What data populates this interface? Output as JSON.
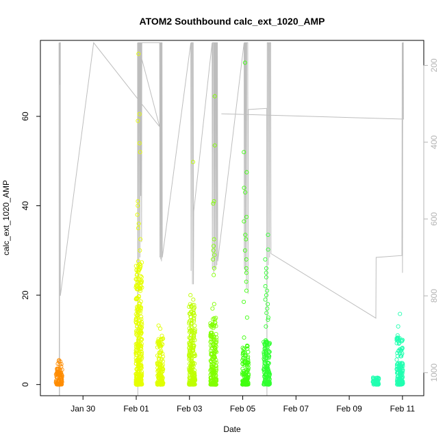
{
  "chart_data": {
    "type": "scatter",
    "title": "ATOM2 Southbound calc_ext_1020_AMP",
    "xlabel": "Date",
    "ylabel": "calc_ext_1020_AMP",
    "x_ticks": [
      "Jan 30",
      "Feb 01",
      "Feb 03",
      "Feb 05",
      "Feb 07",
      "Feb 09",
      "Feb 11"
    ],
    "x_tick_days": [
      30,
      32,
      34,
      36,
      38,
      40,
      42
    ],
    "xlim_days": [
      28.4,
      42.8
    ],
    "ylim": [
      -2.5,
      77
    ],
    "y_ticks": [
      0,
      20,
      40,
      60
    ],
    "y2_ticks": [
      200,
      400,
      600,
      800,
      1000
    ],
    "y2lim": [
      1060,
      135
    ],
    "grid": false,
    "clusters": [
      {
        "day": 29.1,
        "color": "#ff8c00",
        "max": 5.5,
        "high": []
      },
      {
        "day": 32.1,
        "color": "#e6ff00",
        "max": 28,
        "high": [
          74,
          60.5,
          59,
          54,
          52,
          41,
          40,
          38,
          36,
          35,
          32.5,
          30
        ]
      },
      {
        "day": 32.9,
        "color": "#e0ff00",
        "max": 11,
        "high": [
          13.2,
          12.5
        ]
      },
      {
        "day": 34.1,
        "color": "#bfff00",
        "max": 18,
        "high": [
          49.8,
          20,
          19
        ]
      },
      {
        "day": 34.9,
        "color": "#80ff00",
        "max": 15,
        "high": [
          64.5,
          53.5,
          41,
          40.5,
          32.5,
          31,
          30,
          29,
          28,
          26,
          24.5,
          18,
          17
        ]
      },
      {
        "day": 36.1,
        "color": "#40ff10",
        "max": 9,
        "high": [
          72,
          52,
          47.5,
          44,
          43,
          37.5,
          36.5,
          33.5,
          32.5,
          30,
          28,
          26,
          25,
          23,
          21,
          18.5,
          15,
          10.5
        ]
      },
      {
        "day": 36.9,
        "color": "#30ff30",
        "max": 10,
        "high": [
          33.5,
          30.2,
          28,
          26,
          25,
          24,
          22,
          21,
          20,
          19,
          18,
          17,
          16,
          15,
          14.5,
          13
        ]
      },
      {
        "day": 41.0,
        "color": "#20ffb0",
        "max": 1.6,
        "high": []
      },
      {
        "day": 41.9,
        "color": "#20ffb0",
        "max": 11,
        "high": [
          15.8,
          13
        ]
      }
    ],
    "depth_line": [
      [
        29.1,
        141
      ],
      [
        29.11,
        1060
      ],
      [
        29.12,
        1060
      ],
      [
        29.12,
        141
      ],
      [
        29.13,
        141
      ],
      [
        29.13,
        250
      ],
      [
        29.14,
        250
      ],
      [
        29.14,
        141
      ],
      [
        29.15,
        141
      ],
      [
        29.15,
        800
      ],
      [
        30.4,
        141
      ],
      [
        32.88,
        360
      ],
      [
        32.05,
        141
      ],
      [
        32.06,
        1060
      ],
      [
        32.07,
        141
      ],
      [
        32.09,
        141
      ],
      [
        32.1,
        730
      ],
      [
        32.11,
        141
      ],
      [
        32.13,
        141
      ],
      [
        32.14,
        700
      ],
      [
        32.15,
        141
      ],
      [
        32.16,
        141
      ],
      [
        32.17,
        540
      ],
      [
        32.18,
        141
      ],
      [
        32.19,
        141
      ],
      [
        32.2,
        660
      ],
      [
        32.21,
        141
      ],
      [
        32.88,
        141
      ],
      [
        32.89,
        700
      ],
      [
        32.9,
        141
      ],
      [
        32.91,
        141
      ],
      [
        32.92,
        705
      ],
      [
        32.93,
        141
      ],
      [
        32.94,
        141
      ],
      [
        32.95,
        710
      ],
      [
        32.96,
        141
      ],
      [
        32.97,
        141
      ],
      [
        32.98,
        700
      ],
      [
        34.05,
        141
      ],
      [
        34.06,
        735
      ],
      [
        34.07,
        141
      ],
      [
        34.1,
        141
      ],
      [
        34.11,
        770
      ],
      [
        34.12,
        141
      ],
      [
        34.14,
        141
      ],
      [
        34.15,
        770
      ],
      [
        34.16,
        580
      ],
      [
        34.85,
        141
      ],
      [
        34.86,
        730
      ],
      [
        34.87,
        141
      ],
      [
        34.9,
        141
      ],
      [
        34.91,
        740
      ],
      [
        34.92,
        141
      ],
      [
        34.94,
        141
      ],
      [
        34.95,
        730
      ],
      [
        34.96,
        141
      ],
      [
        34.98,
        141
      ],
      [
        34.99,
        730
      ],
      [
        35.0,
        141
      ],
      [
        35.02,
        141
      ],
      [
        35.03,
        720
      ],
      [
        35.04,
        141
      ],
      [
        35.05,
        141
      ],
      [
        35.06,
        710
      ],
      [
        36.05,
        141
      ],
      [
        36.06,
        730
      ],
      [
        36.07,
        141
      ],
      [
        36.09,
        141
      ],
      [
        36.1,
        740
      ],
      [
        36.11,
        141
      ],
      [
        36.13,
        141
      ],
      [
        36.14,
        780
      ],
      [
        36.15,
        141
      ],
      [
        36.19,
        141
      ],
      [
        36.2,
        795
      ],
      [
        36.21,
        315
      ],
      [
        36.9,
        312
      ],
      [
        36.91,
        1060
      ],
      [
        36.92,
        141
      ],
      [
        36.95,
        141
      ],
      [
        36.96,
        720
      ],
      [
        36.97,
        141
      ],
      [
        37.0,
        141
      ],
      [
        37.01,
        700
      ],
      [
        37.02,
        141
      ],
      [
        37.05,
        141
      ],
      [
        37.06,
        690
      ],
      [
        41.0,
        858
      ],
      [
        41.01,
        700
      ],
      [
        41.98,
        695
      ],
      [
        41.99,
        141
      ],
      [
        42.0,
        740
      ],
      [
        42.01,
        141
      ],
      [
        42.03,
        141
      ],
      [
        42.04,
        340
      ],
      [
        35.2,
        326
      ]
    ]
  }
}
